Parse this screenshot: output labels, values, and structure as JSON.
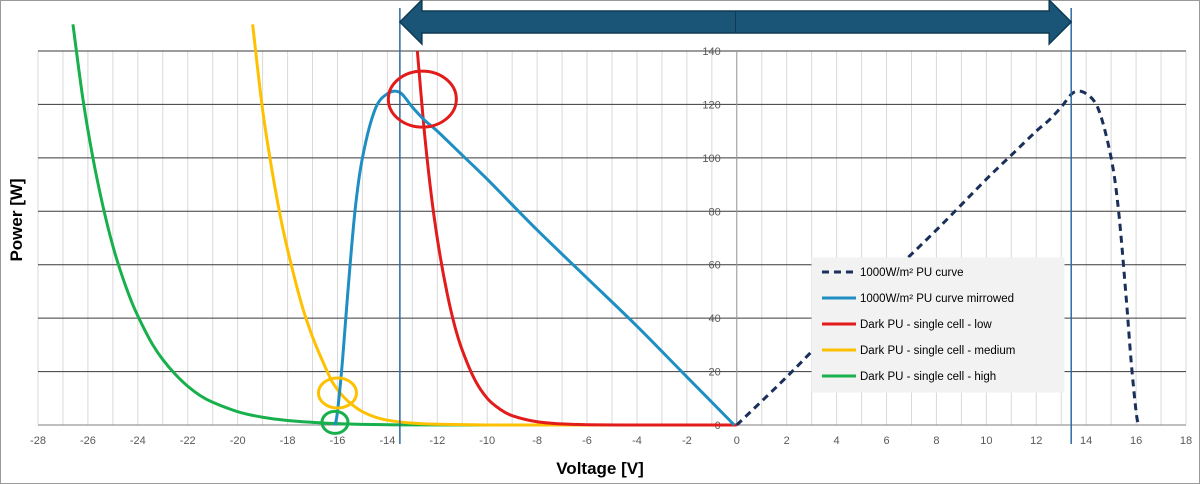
{
  "chart_data": {
    "type": "line",
    "xlabel": "Voltage [V]",
    "ylabel": "Power [W]",
    "xlim": [
      -28,
      18
    ],
    "ylim": [
      0,
      140
    ],
    "x_ticks": [
      -28,
      -26,
      -24,
      -22,
      -20,
      -18,
      -16,
      -14,
      -12,
      -10,
      -8,
      -6,
      -4,
      -2,
      0,
      2,
      4,
      6,
      8,
      10,
      12,
      14,
      16,
      18
    ],
    "y_ticks": [
      0,
      20,
      40,
      60,
      80,
      100,
      120,
      140
    ],
    "grid": "horizontal major and vertical minor gridlines",
    "legend_position": "lower-right",
    "series": [
      {
        "name": "1000W/m² PU curve",
        "color": "#1a2f5a",
        "dash": "dashed",
        "x": [
          0,
          2,
          4,
          6,
          8,
          10,
          11,
          12,
          12.5,
          13,
          13.5,
          14,
          14.5,
          15,
          15.3,
          15.6,
          15.8,
          16.0,
          16.1
        ],
        "y": [
          0,
          18,
          37,
          55,
          73,
          92,
          101,
          110,
          114,
          119,
          124.5,
          124,
          118,
          100,
          80,
          48,
          24,
          5,
          0
        ]
      },
      {
        "name": "1000W/m² PU curve mirrowed",
        "color": "#1f8fc3",
        "dash": "solid",
        "x": [
          -0.1,
          -2,
          -4,
          -6,
          -8,
          -10,
          -11,
          -12,
          -12.5,
          -13,
          -13.5,
          -14,
          -14.5,
          -15,
          -15.3,
          -15.6,
          -15.8,
          -16.0,
          -16.1
        ],
        "y": [
          0,
          18,
          37,
          55,
          73,
          92,
          101,
          110,
          114,
          119,
          124.5,
          124,
          118,
          100,
          80,
          48,
          24,
          5,
          0
        ]
      },
      {
        "name": "Dark PU - single cell - low",
        "color": "#e21b1b",
        "dash": "solid",
        "x": [
          -12.8,
          -12.5,
          -12.2,
          -11.9,
          -11.6,
          -11.3,
          -11.0,
          -10.5,
          -10.0,
          -9.5,
          -9.0,
          -8.0,
          -7.0,
          -6.0,
          -4.0,
          -2.0,
          0
        ],
        "y": [
          140,
          108,
          83,
          64,
          49,
          37,
          28,
          17,
          10,
          6,
          3.5,
          1.2,
          0.4,
          0.1,
          0,
          0,
          0
        ]
      },
      {
        "name": "Dark PU - single cell - medium",
        "color": "#ffc000",
        "dash": "solid",
        "x": [
          -19.4,
          -19.0,
          -18.6,
          -18.2,
          -17.8,
          -17.4,
          -17.0,
          -16.6,
          -16.2,
          -15.8,
          -15.4,
          -15.0,
          -14.5,
          -14.0,
          -13.0,
          -12.0,
          -10.0,
          -8.0,
          0
        ],
        "y": [
          150,
          118,
          94,
          74,
          58,
          44,
          33,
          24,
          16,
          11,
          7.5,
          5,
          3,
          1.8,
          0.7,
          0.3,
          0,
          0,
          0
        ]
      },
      {
        "name": "Dark PU - single cell - high",
        "color": "#18b04c",
        "dash": "solid",
        "x": [
          -26.6,
          -26.2,
          -25.8,
          -25.4,
          -25.0,
          -24.6,
          -24.2,
          -23.8,
          -23.4,
          -23.0,
          -22.5,
          -22.0,
          -21.5,
          -21.0,
          -20.0,
          -19.0,
          -18.0,
          -17.0,
          -16.0,
          -14.0,
          -10.0,
          0
        ],
        "y": [
          150,
          122,
          100,
          82,
          67,
          55,
          45,
          37,
          30,
          24.5,
          19,
          14.5,
          11,
          8.5,
          5,
          2.9,
          1.7,
          1.0,
          0.5,
          0.1,
          0,
          0
        ]
      }
    ],
    "annotations": [
      {
        "type": "vertical-line",
        "x": -13.5,
        "color": "#2e6aa3"
      },
      {
        "type": "vertical-line",
        "x": 13.4,
        "color": "#2e6aa3"
      },
      {
        "type": "double-arrow",
        "from": -13.5,
        "to": 13.4,
        "color": "#1a5577"
      },
      {
        "type": "circle",
        "x": -12.6,
        "y": 122,
        "color": "#e21b1b"
      },
      {
        "type": "circle",
        "x": -16.0,
        "y": 12,
        "color": "#ffc000"
      },
      {
        "type": "circle",
        "x": -16.1,
        "y": 1,
        "color": "#18b04c"
      }
    ]
  }
}
